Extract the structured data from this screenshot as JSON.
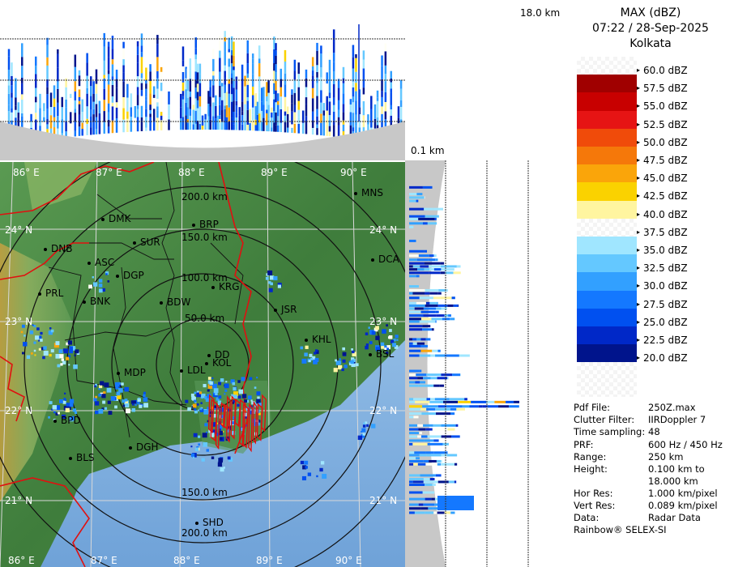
{
  "header": {
    "product": "MAX (dBZ)",
    "datetime": "07:22 / 28-Sep-2025",
    "station": "Kolkata",
    "top_height": "18.0 km",
    "bottom_height": "0.1 km"
  },
  "legend": {
    "levels": [
      {
        "label": "60.0 dBZ",
        "color": "#ffffff"
      },
      {
        "label": "57.5 dBZ",
        "color": "#a00000"
      },
      {
        "label": "55.0 dBZ",
        "color": "#c80000"
      },
      {
        "label": "52.5 dBZ",
        "color": "#e61414"
      },
      {
        "label": "50.0 dBZ",
        "color": "#f04b0a"
      },
      {
        "label": "47.5 dBZ",
        "color": "#f5780a"
      },
      {
        "label": "45.0 dBZ",
        "color": "#faa50a"
      },
      {
        "label": "42.5 dBZ",
        "color": "#fad200"
      },
      {
        "label": "40.0 dBZ",
        "color": "#fff5a0"
      },
      {
        "label": "37.5 dBZ",
        "color": "#fffff5"
      },
      {
        "label": "35.0 dBZ",
        "color": "#a0e6ff"
      },
      {
        "label": "32.5 dBZ",
        "color": "#64c8ff"
      },
      {
        "label": "30.0 dBZ",
        "color": "#32a0ff"
      },
      {
        "label": "27.5 dBZ",
        "color": "#1478ff"
      },
      {
        "label": "25.0 dBZ",
        "color": "#0050f0"
      },
      {
        "label": "22.5 dBZ",
        "color": "#0028c8"
      },
      {
        "label": "20.0 dBZ",
        "color": "#00148c"
      }
    ]
  },
  "map": {
    "lon_labels": [
      "86° E",
      "87° E",
      "88° E",
      "89° E",
      "90° E"
    ],
    "lat_labels": [
      "24° N",
      "23° N",
      "22° N",
      "21° N"
    ],
    "range_rings": [
      "50.0 km",
      "100.0 km",
      "150.0 km",
      "200.0 km"
    ],
    "cities": [
      "MNS",
      "DMK",
      "BRP",
      "DNB",
      "SUR",
      "ASC",
      "DGP",
      "DCA",
      "KRG",
      "PRL",
      "BNK",
      "BDW",
      "JSR",
      "KHL",
      "DD",
      "KOL",
      "BSL",
      "MDP",
      "BPD",
      "DGH",
      "BLS",
      "SHD",
      "LDL"
    ],
    "colors": {
      "land_green": "#4e8a4a",
      "land_low": "#6fa66a",
      "sea": "#7fb0e0",
      "border": "#e01010"
    }
  },
  "info": {
    "rows": [
      {
        "key": "Pdf File:",
        "value": "250Z.max"
      },
      {
        "key": "Clutter Filter:",
        "value": "IIRDoppler 7"
      },
      {
        "key": "Time sampling:",
        "value": "48"
      },
      {
        "key": "PRF:",
        "value": "600 Hz / 450 Hz"
      },
      {
        "key": "Range:",
        "value": "250 km"
      },
      {
        "key": "Height:",
        "value": "0.100 km to"
      },
      {
        "key": "",
        "value": "18.000 km"
      },
      {
        "key": "Hor Res:",
        "value": "1.000 km/pixel"
      },
      {
        "key": "Vert Res:",
        "value": "0.089 km/pixel"
      },
      {
        "key": "Data:",
        "value": "Radar Data"
      }
    ],
    "credit": "Rainbow® SELEX-SI"
  }
}
